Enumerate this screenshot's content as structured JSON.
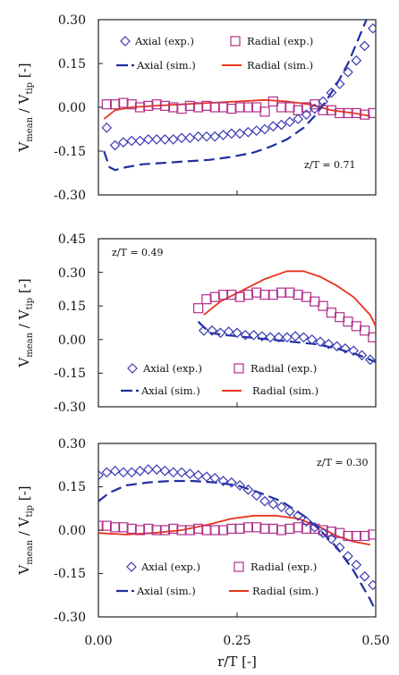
{
  "colors": {
    "axial_exp": "#3b3bb3",
    "radial_exp": "#b0308a",
    "axial_sim": "#1f2f9e",
    "radial_sim": "#e8331c",
    "axis": "#222222"
  },
  "figure": {
    "xlabel": "r/T [-]",
    "x_ticks": [
      "0.00",
      "0.25",
      "0.50"
    ]
  },
  "chart_data": [
    {
      "type": "scatter",
      "panel": "top",
      "annotation": "z/T = 0.71",
      "ylabel": "V_mean / V_tip [-]",
      "ylabel_main": "V",
      "ylabel_sub1": "mean",
      "ylabel_mid": " / V",
      "ylabel_sub2": "tip",
      "ylabel_tail": " [-]",
      "xlim": [
        0.0,
        0.5
      ],
      "ylim": [
        -0.3,
        0.3
      ],
      "y_ticks": [
        "0.30",
        "0.15",
        "0.00",
        "-0.15",
        "-0.30"
      ],
      "legend": {
        "axial_exp": "Axial (exp.)",
        "radial_exp": "Radial (exp.)",
        "axial_sim": "Axial (sim.)",
        "radial_sim": "Radial (sim.)"
      },
      "series": [
        {
          "name": "Axial (exp.)",
          "kind": "marker-diamond",
          "x": [
            0.015,
            0.03,
            0.045,
            0.06,
            0.075,
            0.09,
            0.105,
            0.12,
            0.135,
            0.15,
            0.165,
            0.18,
            0.195,
            0.21,
            0.225,
            0.24,
            0.255,
            0.27,
            0.285,
            0.3,
            0.315,
            0.33,
            0.345,
            0.36,
            0.375,
            0.39,
            0.405,
            0.42,
            0.435,
            0.45,
            0.465,
            0.48,
            0.495
          ],
          "y": [
            -0.07,
            -0.13,
            -0.12,
            -0.115,
            -0.115,
            -0.11,
            -0.11,
            -0.11,
            -0.11,
            -0.105,
            -0.105,
            -0.1,
            -0.1,
            -0.1,
            -0.095,
            -0.09,
            -0.09,
            -0.085,
            -0.08,
            -0.075,
            -0.065,
            -0.06,
            -0.05,
            -0.04,
            -0.025,
            -0.005,
            0.02,
            0.05,
            0.08,
            0.12,
            0.16,
            0.21,
            0.27
          ]
        },
        {
          "name": "Radial (exp.)",
          "kind": "marker-square",
          "x": [
            0.015,
            0.03,
            0.045,
            0.06,
            0.075,
            0.09,
            0.105,
            0.12,
            0.135,
            0.15,
            0.165,
            0.18,
            0.195,
            0.21,
            0.225,
            0.24,
            0.255,
            0.27,
            0.285,
            0.3,
            0.315,
            0.33,
            0.345,
            0.36,
            0.375,
            0.39,
            0.405,
            0.42,
            0.435,
            0.45,
            0.465,
            0.48,
            0.495
          ],
          "y": [
            0.01,
            0.01,
            0.015,
            0.01,
            0.0,
            0.005,
            0.01,
            0.005,
            0.0,
            -0.005,
            0.005,
            0.0,
            0.005,
            0.0,
            0.0,
            -0.005,
            0.0,
            0.0,
            0.0,
            -0.015,
            0.02,
            0.0,
            0.0,
            -0.01,
            0.0,
            0.01,
            -0.01,
            -0.01,
            -0.02,
            -0.02,
            -0.02,
            -0.025,
            -0.02
          ]
        },
        {
          "name": "Axial (sim.)",
          "kind": "line-dashed",
          "x": [
            0.01,
            0.02,
            0.03,
            0.05,
            0.08,
            0.12,
            0.16,
            0.2,
            0.24,
            0.28,
            0.31,
            0.34,
            0.37,
            0.39,
            0.41,
            0.43,
            0.45,
            0.47,
            0.49
          ],
          "y": [
            -0.15,
            -0.205,
            -0.215,
            -0.205,
            -0.195,
            -0.19,
            -0.185,
            -0.18,
            -0.17,
            -0.155,
            -0.135,
            -0.11,
            -0.07,
            -0.03,
            0.02,
            0.08,
            0.15,
            0.24,
            0.33
          ]
        },
        {
          "name": "Radial (sim.)",
          "kind": "line-solid",
          "x": [
            0.01,
            0.03,
            0.06,
            0.1,
            0.15,
            0.2,
            0.25,
            0.3,
            0.34,
            0.38,
            0.42,
            0.46,
            0.49
          ],
          "y": [
            -0.04,
            -0.01,
            0.0,
            0.005,
            0.01,
            0.015,
            0.02,
            0.025,
            0.02,
            0.01,
            -0.01,
            -0.02,
            -0.03
          ]
        }
      ]
    },
    {
      "type": "scatter",
      "panel": "middle",
      "annotation": "z/T = 0.49",
      "ylabel": "V_mean / V_tip [-]",
      "ylabel_main": "V",
      "ylabel_sub1": "mean",
      "ylabel_mid": " / V",
      "ylabel_sub2": "tip",
      "ylabel_tail": " [-]",
      "xlim": [
        0.0,
        0.5
      ],
      "ylim": [
        -0.3,
        0.45
      ],
      "y_ticks": [
        "0.45",
        "0.30",
        "0.15",
        "0.00",
        "-0.15",
        "-0.30"
      ],
      "legend": {
        "axial_exp": "Axial (exp.)",
        "radial_exp": "Radial (exp.)",
        "axial_sim": "Axial (sim.)",
        "radial_sim": "Radial (sim.)"
      },
      "series": [
        {
          "name": "Axial (exp.)",
          "kind": "marker-diamond",
          "x": [
            0.19,
            0.205,
            0.22,
            0.235,
            0.25,
            0.265,
            0.28,
            0.295,
            0.31,
            0.325,
            0.34,
            0.355,
            0.37,
            0.385,
            0.4,
            0.415,
            0.43,
            0.445,
            0.46,
            0.475,
            0.49
          ],
          "y": [
            0.04,
            0.04,
            0.03,
            0.035,
            0.03,
            0.02,
            0.02,
            0.015,
            0.01,
            0.01,
            0.01,
            0.015,
            0.01,
            0.0,
            -0.01,
            -0.02,
            -0.03,
            -0.04,
            -0.05,
            -0.07,
            -0.09
          ]
        },
        {
          "name": "Radial (exp.)",
          "kind": "marker-square",
          "x": [
            0.18,
            0.195,
            0.21,
            0.225,
            0.24,
            0.255,
            0.27,
            0.285,
            0.3,
            0.315,
            0.33,
            0.345,
            0.36,
            0.375,
            0.39,
            0.405,
            0.42,
            0.435,
            0.45,
            0.465,
            0.48,
            0.495
          ],
          "y": [
            0.14,
            0.18,
            0.19,
            0.2,
            0.2,
            0.19,
            0.2,
            0.21,
            0.2,
            0.2,
            0.21,
            0.21,
            0.2,
            0.19,
            0.17,
            0.15,
            0.12,
            0.1,
            0.08,
            0.06,
            0.04,
            0.01
          ]
        },
        {
          "name": "Axial (sim.)",
          "kind": "line-dashed",
          "x": [
            0.18,
            0.2,
            0.23,
            0.27,
            0.31,
            0.35,
            0.39,
            0.43,
            0.47,
            0.5
          ],
          "y": [
            0.08,
            0.03,
            0.02,
            0.01,
            0.0,
            -0.01,
            -0.02,
            -0.04,
            -0.07,
            -0.1
          ]
        },
        {
          "name": "Radial (sim.)",
          "kind": "line-solid",
          "x": [
            0.19,
            0.22,
            0.26,
            0.3,
            0.34,
            0.37,
            0.4,
            0.43,
            0.46,
            0.49,
            0.5
          ],
          "y": [
            0.11,
            0.17,
            0.22,
            0.27,
            0.305,
            0.305,
            0.28,
            0.24,
            0.19,
            0.11,
            0.06
          ]
        }
      ]
    },
    {
      "type": "scatter",
      "panel": "bottom",
      "annotation": "z/T = 0.30",
      "ylabel": "V_mean / V_tip [-]",
      "ylabel_main": "V",
      "ylabel_sub1": "mean",
      "ylabel_mid": " / V",
      "ylabel_sub2": "tip",
      "ylabel_tail": " [-]",
      "xlim": [
        0.0,
        0.5
      ],
      "ylim": [
        -0.3,
        0.3
      ],
      "y_ticks": [
        "0.30",
        "0.15",
        "0.00",
        "-0.15",
        "-0.30"
      ],
      "legend": {
        "axial_exp": "Axial (exp.)",
        "radial_exp": "Radial (exp.)",
        "axial_sim": "Axial (sim.)",
        "radial_sim": "Radial (sim.)"
      },
      "series": [
        {
          "name": "Axial (exp.)",
          "kind": "marker-diamond",
          "x": [
            0.0,
            0.015,
            0.03,
            0.045,
            0.06,
            0.075,
            0.09,
            0.105,
            0.12,
            0.135,
            0.15,
            0.165,
            0.18,
            0.195,
            0.21,
            0.225,
            0.24,
            0.255,
            0.27,
            0.285,
            0.3,
            0.315,
            0.33,
            0.345,
            0.36,
            0.375,
            0.39,
            0.405,
            0.42,
            0.435,
            0.45,
            0.465,
            0.48,
            0.495
          ],
          "y": [
            0.19,
            0.2,
            0.205,
            0.2,
            0.2,
            0.205,
            0.21,
            0.21,
            0.205,
            0.2,
            0.2,
            0.195,
            0.19,
            0.185,
            0.18,
            0.17,
            0.165,
            0.155,
            0.14,
            0.12,
            0.1,
            0.09,
            0.08,
            0.065,
            0.05,
            0.03,
            0.01,
            -0.01,
            -0.03,
            -0.06,
            -0.09,
            -0.12,
            -0.16,
            -0.19
          ]
        },
        {
          "name": "Radial (exp.)",
          "kind": "marker-square",
          "x": [
            0.0,
            0.015,
            0.03,
            0.045,
            0.06,
            0.075,
            0.09,
            0.105,
            0.12,
            0.135,
            0.15,
            0.165,
            0.18,
            0.195,
            0.21,
            0.225,
            0.24,
            0.255,
            0.27,
            0.285,
            0.3,
            0.315,
            0.33,
            0.345,
            0.36,
            0.375,
            0.39,
            0.405,
            0.42,
            0.435,
            0.45,
            0.465,
            0.48,
            0.495
          ],
          "y": [
            0.015,
            0.015,
            0.01,
            0.01,
            0.005,
            0.0,
            0.005,
            0.0,
            0.0,
            0.005,
            0.0,
            0.0,
            0.005,
            0.0,
            0.0,
            0.0,
            0.005,
            0.005,
            0.01,
            0.01,
            0.005,
            0.005,
            0.0,
            0.005,
            0.01,
            0.005,
            0.005,
            0.0,
            -0.005,
            -0.01,
            -0.02,
            -0.02,
            -0.02,
            -0.015
          ]
        },
        {
          "name": "Axial (sim.)",
          "kind": "line-dashed",
          "x": [
            0.0,
            0.02,
            0.05,
            0.09,
            0.13,
            0.17,
            0.21,
            0.25,
            0.29,
            0.33,
            0.37,
            0.4,
            0.43,
            0.46,
            0.49,
            0.5
          ],
          "y": [
            0.1,
            0.13,
            0.155,
            0.165,
            0.17,
            0.17,
            0.165,
            0.155,
            0.13,
            0.1,
            0.05,
            0.0,
            -0.06,
            -0.14,
            -0.24,
            -0.28
          ]
        },
        {
          "name": "Radial (sim.)",
          "kind": "line-solid",
          "x": [
            0.0,
            0.05,
            0.1,
            0.15,
            0.2,
            0.24,
            0.28,
            0.32,
            0.36,
            0.4,
            0.43,
            0.46,
            0.49
          ],
          "y": [
            -0.01,
            -0.015,
            -0.01,
            0.0,
            0.02,
            0.04,
            0.05,
            0.05,
            0.04,
            0.01,
            -0.02,
            -0.04,
            -0.05
          ]
        }
      ]
    }
  ]
}
